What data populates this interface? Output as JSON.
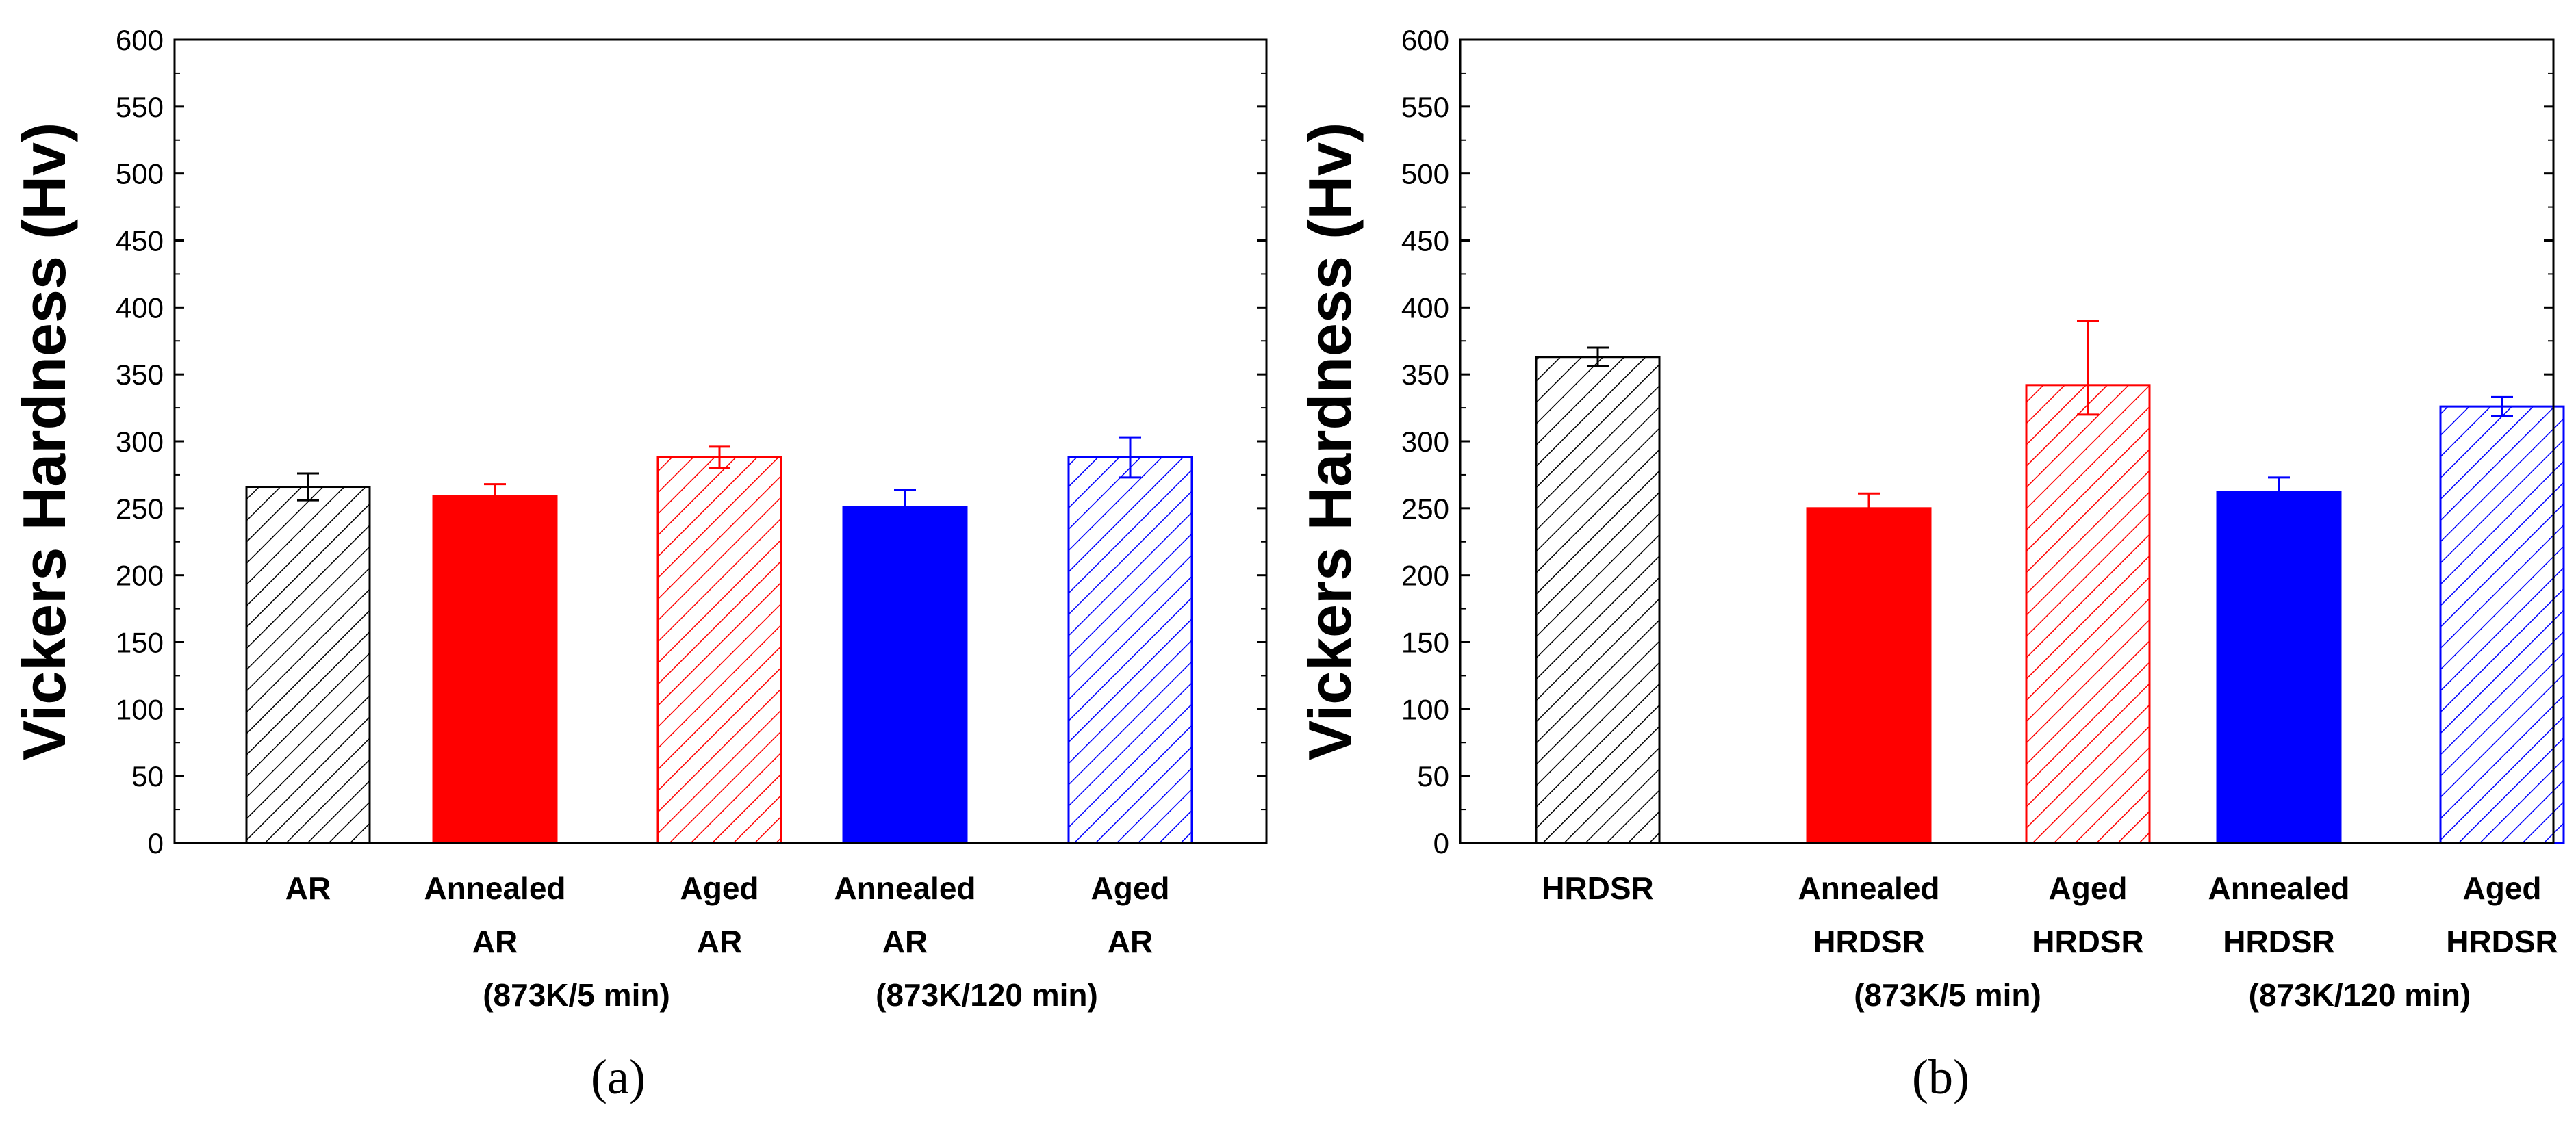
{
  "chart_data": [
    {
      "type": "bar",
      "panel_label": "(a)",
      "ylabel": "Vickers Hardness (Hv)",
      "ylim": [
        0,
        600
      ],
      "yticks": [
        0,
        50,
        100,
        150,
        200,
        250,
        300,
        350,
        400,
        450,
        500,
        550,
        600
      ],
      "bars": [
        {
          "label_lines": [
            "AR"
          ],
          "value": 266,
          "error": 10,
          "color": "#000000",
          "fill": "hatch"
        },
        {
          "label_lines": [
            "Annealed",
            "AR"
          ],
          "value": 259,
          "error": 9,
          "color": "#ff0000",
          "fill": "solid"
        },
        {
          "label_lines": [
            "Aged",
            "AR"
          ],
          "value": 288,
          "error": 8,
          "color": "#ff0000",
          "fill": "hatch"
        },
        {
          "label_lines": [
            "Annealed",
            "AR"
          ],
          "value": 251,
          "error": 13,
          "color": "#0000ff",
          "fill": "solid"
        },
        {
          "label_lines": [
            "Aged",
            "AR"
          ],
          "value": 288,
          "error": 15,
          "color": "#0000ff",
          "fill": "hatch"
        }
      ],
      "group_labels": [
        {
          "text": "(873K/5 min)",
          "bars": [
            1,
            2
          ]
        },
        {
          "text": "(873K/120 min)",
          "bars": [
            3,
            4
          ]
        }
      ]
    },
    {
      "type": "bar",
      "panel_label": "(b)",
      "ylabel": "Vickers Hardness (Hv)",
      "ylim": [
        0,
        600
      ],
      "yticks": [
        0,
        50,
        100,
        150,
        200,
        250,
        300,
        350,
        400,
        450,
        500,
        550,
        600
      ],
      "bars": [
        {
          "label_lines": [
            "HRDSR"
          ],
          "value": 363,
          "error": 7,
          "color": "#000000",
          "fill": "hatch"
        },
        {
          "label_lines": [
            "Annealed",
            "HRDSR"
          ],
          "value": 250,
          "error": 11,
          "color": "#ff0000",
          "fill": "solid"
        },
        {
          "label_lines": [
            "Aged",
            "HRDSR"
          ],
          "value": 342,
          "error": 26,
          "color": "#ff0000",
          "fill": "hatch",
          "error_low": 22,
          "error_high": 48
        },
        {
          "label_lines": [
            "Annealed",
            "HRDSR"
          ],
          "value": 262,
          "error": 11,
          "color": "#0000ff",
          "fill": "solid"
        },
        {
          "label_lines": [
            "Aged",
            "HRDSR"
          ],
          "value": 326,
          "error": 7,
          "color": "#0000ff",
          "fill": "hatch"
        }
      ],
      "group_labels": [
        {
          "text": "(873K/5 min)",
          "bars": [
            1,
            2
          ]
        },
        {
          "text": "(873K/120 min)",
          "bars": [
            3,
            4
          ]
        }
      ]
    }
  ]
}
